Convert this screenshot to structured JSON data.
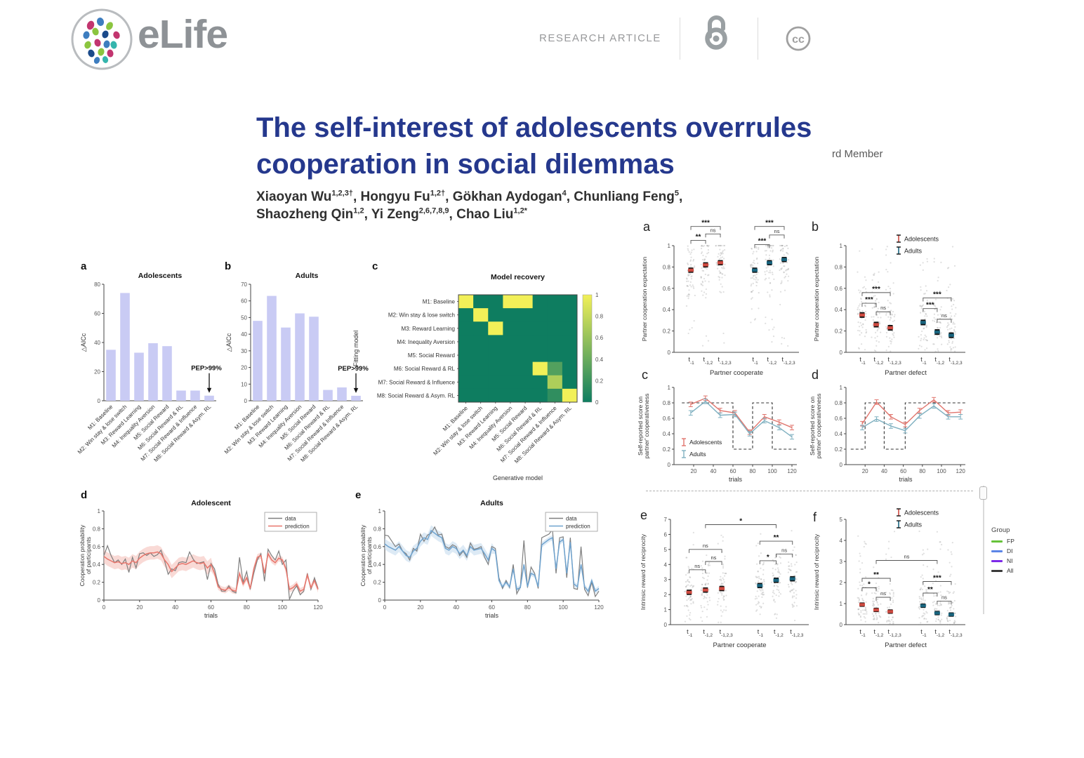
{
  "header": {
    "brand": "eLife",
    "kicker": "RESEARCH ARTICLE"
  },
  "article": {
    "title": [
      "The self-interest of adolescents overrules",
      "cooperation in social dilemmas"
    ],
    "side_fragment": "rd Member",
    "authors": [
      {
        "name": "Xiaoyan Wu",
        "sup": "1,2,3†",
        "sep": ", "
      },
      {
        "name": "Hongyu Fu",
        "sup": "1,2†",
        "sep": ", "
      },
      {
        "name": "Gökhan Aydogan",
        "sup": "4",
        "sep": ", "
      },
      {
        "name": "Chunliang Feng",
        "sup": "5",
        "sep": ",",
        "break_after": true
      },
      {
        "name": "Shaozheng Qin",
        "sup": "1,2",
        "sep": ", "
      },
      {
        "name": "Yi Zeng",
        "sup": "2,6,7,8,9",
        "sep": ", "
      },
      {
        "name": "Chao Liu",
        "sup": "1,2*",
        "sep": ""
      }
    ]
  },
  "panel_letters": {
    "la": "a",
    "lb": "b",
    "lc": "c",
    "ld": "d",
    "le": "e",
    "ra": "a",
    "rb": "b",
    "rc": "c",
    "rd": "d",
    "re": "e",
    "rf": "f"
  },
  "side_legend": {
    "title": "Group",
    "items": [
      {
        "label": "FP",
        "color": "#66c23a"
      },
      {
        "label": "DI",
        "color": "#5c85e6"
      },
      {
        "label": "NI",
        "color": "#7d2ae8"
      },
      {
        "label": "All",
        "color": "#3a3a3a"
      }
    ]
  },
  "chart_data": [
    {
      "id": "aicc-adolescents",
      "type": "bar",
      "title": "Adolescents",
      "ylabel": "△AICc",
      "categories": [
        "M1: Baseline",
        "M2: Win stay & lose switch",
        "M3: Reward Learning",
        "M4: Inequality Aversion",
        "M5: Social Reward",
        "M6: Social Reward & RL",
        "M7: Social Reward & Influence",
        "M8: Social Reward & Asym. RL"
      ],
      "values": [
        35,
        74,
        33,
        39.5,
        37.5,
        7,
        7,
        3.5
      ],
      "ylim": [
        0,
        80
      ],
      "ytick": 20,
      "annotation": {
        "text": "PEP>99%",
        "bar": 7
      },
      "bar_color": "#c9cbf4"
    },
    {
      "id": "aicc-adults",
      "type": "bar",
      "title": "Adults",
      "ylabel": "△AICc",
      "categories": [
        "M1: Baseline",
        "M2: Win stay & lose switch",
        "M3: Reward Learning",
        "M4: Inequality Aversion",
        "M5: Social Reward",
        "M6: Social Reward & RL",
        "M7: Social Reward & Influence",
        "M8: Social Reward & Asym. RL"
      ],
      "values": [
        48,
        63,
        44,
        52.5,
        50.5,
        6.5,
        8,
        3
      ],
      "ylim": [
        0,
        70
      ],
      "ytick": 10,
      "annotation": {
        "text": "PEP>99%",
        "bar": 7
      },
      "bar_color": "#c9cbf4"
    },
    {
      "id": "model-recovery",
      "type": "heatmap",
      "title": "Model recovery",
      "rows": [
        "M1: Baseline",
        "M2: Win stay & lose switch",
        "M3: Reward Learning",
        "M4: Inequality Aversion",
        "M5: Social Reward",
        "M6: Social Reward & RL",
        "M7: Social Reward & Influence",
        "M8: Social Reward & Asym. RL"
      ],
      "cols": [
        "M1: Baseline",
        "M2: Win stay & lose switch",
        "M3: Reward Learning",
        "M4: Inequality Aversion",
        "M5: Social Reward",
        "M6: Social Reward & RL",
        "M7: Social Reward & Influence",
        "M8: Social Reward & Asym. RL"
      ],
      "matrix": [
        [
          1,
          0,
          0,
          1,
          1,
          0,
          0,
          0
        ],
        [
          0,
          1,
          0,
          0,
          0,
          0,
          0,
          0
        ],
        [
          0,
          0,
          1,
          0,
          0,
          0,
          0,
          0
        ],
        [
          0,
          0,
          0,
          0,
          0,
          0,
          0,
          0
        ],
        [
          0,
          0,
          0,
          0,
          0,
          0,
          0,
          0
        ],
        [
          0,
          0,
          0,
          0,
          0,
          1,
          0.3,
          0
        ],
        [
          0,
          0,
          0,
          0,
          0,
          0,
          0.7,
          0
        ],
        [
          0,
          0,
          0,
          0,
          0,
          0,
          0.15,
          1
        ]
      ],
      "xlabel": "Generative model",
      "side_label": "Fitting model",
      "colorbar_ticks": [
        0,
        0.2,
        0.4,
        0.6,
        0.8,
        1
      ],
      "cmap": {
        "low": "#0e7d60",
        "high": "#f2f058"
      }
    },
    {
      "id": "coop-adolescent",
      "type": "line",
      "title": "Adolescent",
      "xlabel": "trials",
      "ylabel": [
        "Cooperation probability",
        "of participants"
      ],
      "xlim": [
        0,
        120
      ],
      "xtick": 20,
      "ylim": [
        0,
        1
      ],
      "ytick": 0.2,
      "legend": [
        "data",
        "prediction"
      ],
      "colors": {
        "data": "#7f7f7f",
        "prediction": "#e8756b",
        "band": "#f5c1bb"
      },
      "x_start": 0,
      "x_step": 2,
      "band_half": [
        0.075,
        0.035
      ],
      "data": [
        0.5,
        0.61,
        0.5,
        0.42,
        0.45,
        0.4,
        0.46,
        0.31,
        0.48,
        0.36,
        0.52,
        0.53,
        0.5,
        0.53,
        0.49,
        0.51,
        0.56,
        0.44,
        0.29,
        0.35,
        0.33,
        0.42,
        0.43,
        0.42,
        0.54,
        0.46,
        0.41,
        0.42,
        0.43,
        0.23,
        0.41,
        0.35,
        0.18,
        0.1,
        0.1,
        0.16,
        0.1,
        0.08,
        0.48,
        0.2,
        0.32,
        0.12,
        0.3,
        0.45,
        0.52,
        0.21,
        0.57,
        0.5,
        0.45,
        0.55,
        0.4,
        0.45,
        0.01,
        0.1,
        0.16,
        0.06,
        0.1,
        0.3,
        0.12,
        0.25,
        0.13
      ],
      "prediction": [
        0.49,
        0.46,
        0.44,
        0.42,
        0.43,
        0.41,
        0.42,
        0.4,
        0.44,
        0.42,
        0.47,
        0.5,
        0.52,
        0.53,
        0.53,
        0.54,
        0.52,
        0.45,
        0.4,
        0.32,
        0.36,
        0.4,
        0.41,
        0.4,
        0.42,
        0.44,
        0.42,
        0.41,
        0.42,
        0.36,
        0.4,
        0.3,
        0.15,
        0.12,
        0.11,
        0.14,
        0.11,
        0.1,
        0.3,
        0.18,
        0.25,
        0.13,
        0.35,
        0.48,
        0.5,
        0.3,
        0.52,
        0.45,
        0.42,
        0.47,
        0.45,
        0.35,
        0.12,
        0.14,
        0.18,
        0.1,
        0.12,
        0.28,
        0.14,
        0.22,
        0.12
      ]
    },
    {
      "id": "coop-adults",
      "type": "line",
      "title": "Adults",
      "xlabel": "trials",
      "ylabel": [
        "Cooperation probability",
        "of participants"
      ],
      "xlim": [
        0,
        120
      ],
      "xtick": 20,
      "ylim": [
        0,
        1
      ],
      "ytick": 0.2,
      "legend": [
        "data",
        "prediction"
      ],
      "colors": {
        "data": "#7f7f7f",
        "prediction": "#6fa3cf",
        "band": "#c6dcee"
      },
      "x_start": 0,
      "x_step": 2,
      "band_half": [
        0.06,
        0.03
      ],
      "data": [
        0.73,
        0.72,
        0.66,
        0.6,
        0.63,
        0.55,
        0.52,
        0.45,
        0.58,
        0.55,
        0.74,
        0.66,
        0.73,
        0.75,
        0.82,
        0.73,
        0.74,
        0.6,
        0.58,
        0.62,
        0.6,
        0.5,
        0.55,
        0.48,
        0.64,
        0.57,
        0.58,
        0.6,
        0.48,
        0.4,
        0.6,
        0.58,
        0.25,
        0.13,
        0.22,
        0.14,
        0.4,
        0.07,
        0.15,
        0.67,
        0.14,
        0.37,
        0.3,
        0.13,
        0.7,
        0.72,
        0.74,
        0.79,
        0.3,
        0.7,
        0.71,
        0.25,
        0.7,
        0.13,
        0.12,
        0.6,
        0.12,
        0.05,
        0.2,
        0.04,
        0.1
      ],
      "prediction": [
        0.63,
        0.6,
        0.58,
        0.56,
        0.6,
        0.55,
        0.5,
        0.48,
        0.55,
        0.58,
        0.66,
        0.7,
        0.68,
        0.78,
        0.75,
        0.72,
        0.7,
        0.58,
        0.56,
        0.6,
        0.58,
        0.52,
        0.56,
        0.5,
        0.6,
        0.56,
        0.57,
        0.58,
        0.52,
        0.45,
        0.58,
        0.55,
        0.22,
        0.15,
        0.2,
        0.15,
        0.35,
        0.12,
        0.14,
        0.4,
        0.15,
        0.3,
        0.28,
        0.15,
        0.62,
        0.65,
        0.68,
        0.7,
        0.35,
        0.65,
        0.68,
        0.3,
        0.65,
        0.18,
        0.15,
        0.4,
        0.15,
        0.1,
        0.22,
        0.1,
        0.13
      ]
    },
    {
      "id": "expectation-cooperate",
      "type": "scatter-means",
      "ylabel": "Partner cooperation expectation",
      "xlabel": "Partner cooperate",
      "ylim": [
        0,
        1
      ],
      "ytick": 0.2,
      "tick_base": "t",
      "tick_subs": [
        "-1",
        "-1,2",
        "-1,2,3"
      ],
      "groups": [
        {
          "name": "Adolescents",
          "color": "#cd4a40",
          "means": [
            0.77,
            0.82,
            0.84
          ],
          "err": 0.018
        },
        {
          "name": "Adults",
          "color": "#19647e",
          "means": [
            0.77,
            0.84,
            0.87
          ],
          "err": 0.018
        }
      ],
      "scatter": {
        "spread": 0.2,
        "min": 0.05,
        "max": 1.0
      },
      "brackets": [
        {
          "g": 0,
          "i": 0,
          "j": 1,
          "label": "**",
          "y": 1.05
        },
        {
          "g": 0,
          "i": 1,
          "j": 2,
          "label": "ns",
          "y": 1.11
        },
        {
          "g": 0,
          "i": 0,
          "j": 2,
          "label": "***",
          "y": 1.18
        },
        {
          "g": 1,
          "i": 0,
          "j": 1,
          "label": "***",
          "y": 1.01
        },
        {
          "g": 1,
          "i": 1,
          "j": 2,
          "label": "ns",
          "y": 1.1
        },
        {
          "g": 1,
          "i": 0,
          "j": 2,
          "label": "***",
          "y": 1.18
        }
      ]
    },
    {
      "id": "expectation-defect",
      "type": "scatter-means",
      "ylabel": "Partner cooperation expectation",
      "xlabel": "Partner defect",
      "ylim": [
        0,
        1
      ],
      "ytick": 0.2,
      "tick_base": "t",
      "tick_subs": [
        "-1",
        "-1,2",
        "-1,2,3"
      ],
      "legend": true,
      "groups": [
        {
          "name": "Adolescents",
          "color": "#cd4a40",
          "means": [
            0.35,
            0.26,
            0.23
          ],
          "err": 0.02
        },
        {
          "name": "Adults",
          "color": "#19647e",
          "means": [
            0.28,
            0.19,
            0.16
          ],
          "err": 0.02
        }
      ],
      "scatter": {
        "spread": 0.24,
        "min": 0.0,
        "max": 1.0
      },
      "brackets": [
        {
          "g": 0,
          "i": 0,
          "j": 1,
          "label": "***",
          "y": 0.46
        },
        {
          "g": 0,
          "i": 1,
          "j": 2,
          "label": "ns",
          "y": 0.38
        },
        {
          "g": 0,
          "i": 0,
          "j": 2,
          "label": "***",
          "y": 0.56
        },
        {
          "g": 1,
          "i": 0,
          "j": 1,
          "label": "***",
          "y": 0.41
        },
        {
          "g": 1,
          "i": 1,
          "j": 2,
          "label": "ns",
          "y": 0.31
        },
        {
          "g": 1,
          "i": 0,
          "j": 2,
          "label": "***",
          "y": 0.51
        }
      ]
    },
    {
      "id": "score-cooperate",
      "type": "errline",
      "ylabel": [
        "Self-reported score on",
        "partner' cooperativeness"
      ],
      "xlabel": "trials",
      "ylim": [
        0,
        1
      ],
      "ytick": 0.2,
      "xlim": [
        0,
        125
      ],
      "xticks": [
        20,
        40,
        60,
        80,
        100,
        120
      ],
      "x": [
        17,
        32,
        47,
        62,
        77,
        92,
        107,
        120
      ],
      "series": [
        {
          "name": "Adolescents",
          "color": "#e0756d",
          "values": [
            0.78,
            0.86,
            0.7,
            0.67,
            0.42,
            0.62,
            0.55,
            0.48
          ],
          "err": 0.03
        },
        {
          "name": "Adults",
          "color": "#7fb0c0",
          "values": [
            0.67,
            0.82,
            0.64,
            0.65,
            0.4,
            0.57,
            0.48,
            0.36
          ],
          "err": 0.03
        }
      ],
      "step": [
        [
          8,
          0.8
        ],
        [
          60,
          0.8
        ],
        [
          60,
          0.2
        ],
        [
          80,
          0.2
        ],
        [
          80,
          0.8
        ],
        [
          100,
          0.8
        ],
        [
          100,
          0.2
        ],
        [
          125,
          0.2
        ]
      ],
      "legend_inside": true
    },
    {
      "id": "score-defect",
      "type": "errline",
      "ylabel": [
        "Self-reported score on",
        "partner' cooperativeness"
      ],
      "xlabel": "trials",
      "ylim": [
        0,
        1
      ],
      "ytick": 0.2,
      "xlim": [
        0,
        125
      ],
      "xticks": [
        20,
        40,
        60,
        80,
        100,
        120
      ],
      "x": [
        17,
        32,
        47,
        62,
        77,
        92,
        107,
        120
      ],
      "series": [
        {
          "name": "Adolescents",
          "color": "#e0756d",
          "values": [
            0.53,
            0.81,
            0.62,
            0.52,
            0.7,
            0.84,
            0.67,
            0.68
          ],
          "err": 0.03
        },
        {
          "name": "Adults",
          "color": "#7fb0c0",
          "values": [
            0.48,
            0.59,
            0.5,
            0.44,
            0.63,
            0.76,
            0.62,
            0.62
          ],
          "err": 0.03
        }
      ],
      "step": [
        [
          5,
          0.2
        ],
        [
          20,
          0.2
        ],
        [
          20,
          0.8
        ],
        [
          40,
          0.8
        ],
        [
          40,
          0.2
        ],
        [
          62,
          0.2
        ],
        [
          62,
          0.8
        ],
        [
          125,
          0.8
        ]
      ],
      "legend_inside": false
    },
    {
      "id": "reciprocity-cooperate",
      "type": "scatter-means",
      "ylabel": "Intrinsic reward of reciprocity",
      "xlabel": "Partner cooperate",
      "ylim": [
        0,
        7
      ],
      "ytick": 1,
      "tick_base": "t",
      "tick_subs": [
        "-1",
        "-1,2",
        "-1,2,3"
      ],
      "groups": [
        {
          "name": "Adolescents",
          "color": "#cd4a40",
          "means": [
            2.15,
            2.3,
            2.4
          ],
          "err": 0.13
        },
        {
          "name": "Adults",
          "color": "#19647e",
          "means": [
            2.6,
            2.95,
            3.05
          ],
          "err": 0.13
        }
      ],
      "scatter": {
        "spread": 1.3,
        "min": 0.15,
        "max": 6.3
      },
      "brackets": [
        {
          "g": 0,
          "i": 0,
          "j": 1,
          "label": "ns",
          "y": 3.65
        },
        {
          "g": 0,
          "i": 1,
          "j": 2,
          "label": "ns",
          "y": 4.2
        },
        {
          "g": 0,
          "i": 0,
          "j": 2,
          "label": "ns",
          "y": 5.0
        },
        {
          "g": 1,
          "i": 0,
          "j": 1,
          "label": "*",
          "y": 4.25
        },
        {
          "g": 1,
          "i": 1,
          "j": 2,
          "label": "ns",
          "y": 4.7
        },
        {
          "g": 1,
          "i": 0,
          "j": 2,
          "label": "**",
          "y": 5.55
        }
      ],
      "cross": {
        "i": 1,
        "label": "*",
        "y": 6.65
      }
    },
    {
      "id": "reciprocity-defect",
      "type": "scatter-means",
      "ylabel": "Intrinsic reward of reciprocity",
      "xlabel": "Partner defect",
      "ylim": [
        0,
        5
      ],
      "ytick": 1,
      "tick_base": "t",
      "tick_subs": [
        "-1",
        "-1,2",
        "-1,2,3"
      ],
      "legend": true,
      "groups": [
        {
          "name": "Adolescents",
          "color": "#cd4a40",
          "means": [
            0.95,
            0.7,
            0.62
          ],
          "err": 0.07
        },
        {
          "name": "Adults",
          "color": "#19647e",
          "means": [
            0.9,
            0.55,
            0.48
          ],
          "err": 0.07
        }
      ],
      "scatter": {
        "spread": 0.85,
        "min": 0.0,
        "max": 4.6
      },
      "brackets": [
        {
          "g": 0,
          "i": 0,
          "j": 1,
          "label": "*",
          "y": 1.75
        },
        {
          "g": 0,
          "i": 1,
          "j": 2,
          "label": "ns",
          "y": 1.3
        },
        {
          "g": 0,
          "i": 0,
          "j": 2,
          "label": "**",
          "y": 2.2
        },
        {
          "g": 1,
          "i": 0,
          "j": 1,
          "label": "**",
          "y": 1.5
        },
        {
          "g": 1,
          "i": 1,
          "j": 2,
          "label": "ns",
          "y": 1.12
        },
        {
          "g": 1,
          "i": 0,
          "j": 2,
          "label": "***",
          "y": 2.05
        }
      ],
      "cross": {
        "i": 1,
        "label": "ns",
        "y": 3.05
      }
    }
  ]
}
